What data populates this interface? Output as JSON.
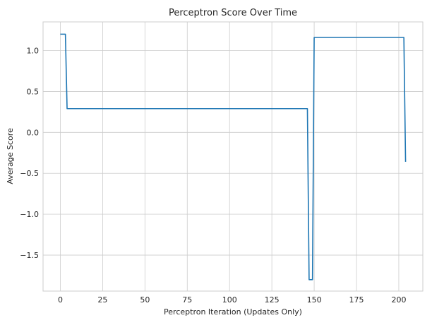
{
  "chart_data": {
    "type": "line",
    "title": "Perceptron Score Over Time",
    "xlabel": "Perceptron Iteration (Updates Only)",
    "ylabel": "Average Score",
    "xlim": [
      -10.2,
      214.2
    ],
    "ylim": [
      -1.94,
      1.35
    ],
    "xticks": [
      0,
      25,
      50,
      75,
      100,
      125,
      150,
      175,
      200
    ],
    "yticks": [
      -1.5,
      -1.0,
      -0.5,
      0.0,
      0.5,
      1.0
    ],
    "ytick_labels": [
      "−1.5",
      "−1.0",
      "−0.5",
      "0.0",
      "0.5",
      "1.0"
    ],
    "grid": true,
    "color": "#1f77b4",
    "series": [
      {
        "x": [
          0,
          3,
          4,
          146,
          147,
          149,
          150,
          203,
          204
        ],
        "y": [
          1.2,
          1.2,
          0.29,
          0.29,
          -1.8,
          -1.8,
          1.16,
          1.16,
          -0.36
        ]
      }
    ]
  }
}
